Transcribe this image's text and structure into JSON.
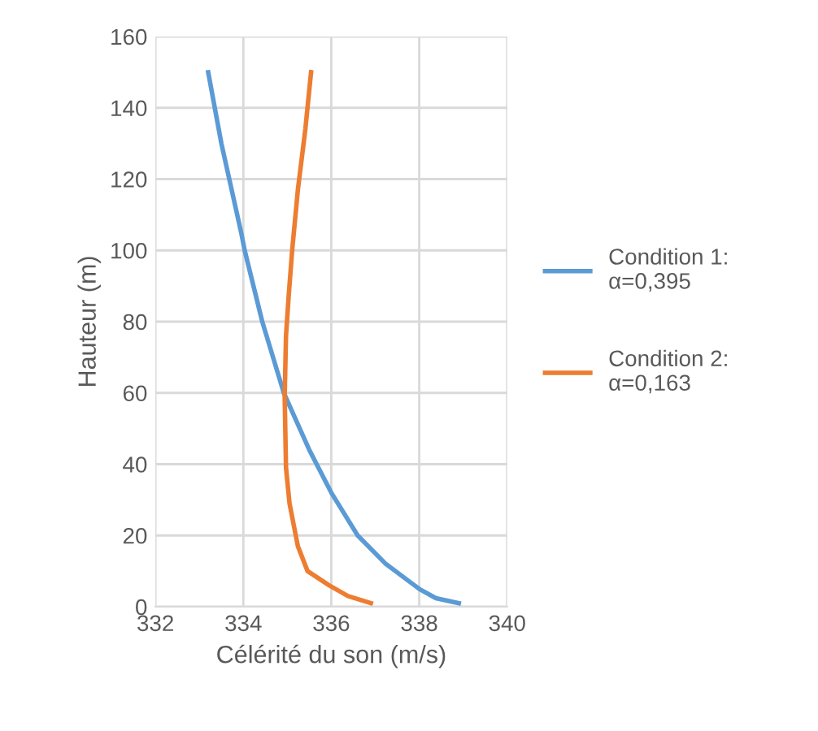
{
  "chart_data": {
    "type": "line",
    "xlabel": "Célérité du son (m/s)",
    "ylabel": "Hauteur (m)",
    "xlim": [
      332,
      340
    ],
    "xticks": [
      332,
      334,
      336,
      338,
      340
    ],
    "ylim": [
      0,
      160
    ],
    "yticks": [
      0,
      20,
      40,
      60,
      80,
      100,
      120,
      140,
      160
    ],
    "grid": true,
    "legend": "right",
    "marker": "none",
    "line_style": "solid",
    "series": [
      {
        "name": "Condition 1:\nα=0,395",
        "color": "#5b9bd5",
        "x": [
          333.2,
          333.5,
          333.95,
          334.03,
          334.43,
          334.92,
          335.5,
          336.0,
          336.6,
          337.24,
          338.0,
          338.38,
          338.9
        ],
        "values": [
          150,
          130,
          105,
          100,
          80,
          60,
          44,
          32,
          20,
          12,
          5,
          2.4,
          1
        ]
      },
      {
        "name": "Condition 2:\nα=0,163",
        "color": "#ed7d31",
        "x": [
          335.54,
          335.41,
          335.24,
          335.11,
          335.03,
          334.97,
          334.94,
          334.97,
          335.05,
          335.24,
          335.46,
          335.95,
          336.38,
          336.9
        ],
        "values": [
          150,
          134,
          117,
          100,
          87,
          76,
          59,
          39,
          29,
          17,
          10,
          6,
          3,
          1
        ]
      }
    ]
  }
}
